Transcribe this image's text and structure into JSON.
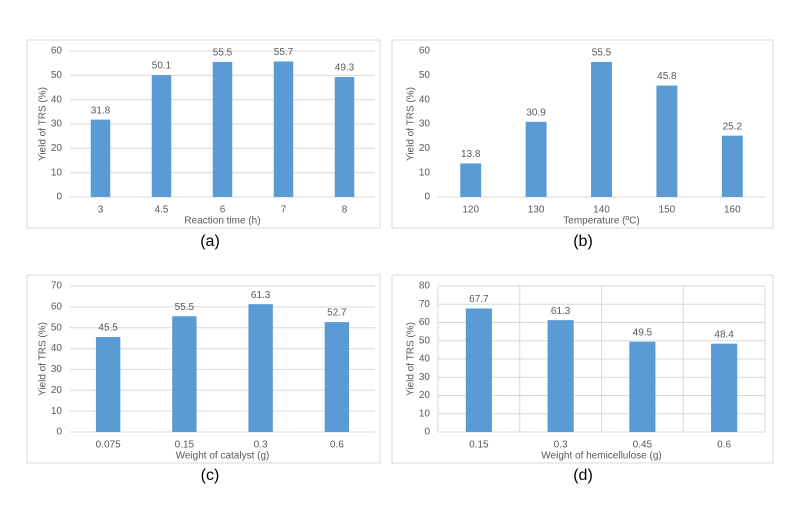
{
  "chart_data": [
    {
      "type": "bar",
      "caption": "(a)",
      "xlabel": "Reaction time (h)",
      "ylabel": "Yield of TRS (%)",
      "categories": [
        "3",
        "4.5",
        "6",
        "7",
        "8"
      ],
      "values": [
        31.8,
        50.1,
        55.5,
        55.7,
        49.3
      ],
      "color": "#5b9bd5",
      "ylim": [
        0,
        60
      ],
      "yticks": [
        0,
        10,
        20,
        30,
        40,
        50,
        60
      ],
      "grid": true,
      "vgrid": false
    },
    {
      "type": "bar",
      "caption": "(b)",
      "xlabel": "Temperature (ºC)",
      "ylabel": "Yield of TRS (%)",
      "categories": [
        "120",
        "130",
        "140",
        "150",
        "160"
      ],
      "values": [
        13.8,
        30.9,
        55.5,
        45.8,
        25.2
      ],
      "color": "#5b9bd5",
      "ylim": [
        0,
        60
      ],
      "yticks": [
        0,
        10,
        20,
        30,
        40,
        50,
        60
      ],
      "grid": false,
      "vgrid": false
    },
    {
      "type": "bar",
      "caption": "(c)",
      "xlabel": "Weight of catalyst (g)",
      "ylabel": "Yield of TRS (%)",
      "categories": [
        "0.075",
        "0.15",
        "0.3",
        "0.6"
      ],
      "values": [
        45.5,
        55.5,
        61.3,
        52.7
      ],
      "color": "#5b9bd5",
      "ylim": [
        0,
        70
      ],
      "yticks": [
        0,
        10,
        20,
        30,
        40,
        50,
        60,
        70
      ],
      "grid": true,
      "vgrid": false
    },
    {
      "type": "bar",
      "caption": "(d)",
      "xlabel": "Weight of hemicellulose (g)",
      "ylabel": "Yield of TRS (%)",
      "categories": [
        "0.15",
        "0.3",
        "0.45",
        "0.6"
      ],
      "values": [
        67.7,
        61.3,
        49.5,
        48.4
      ],
      "color": "#5b9bd5",
      "ylim": [
        0,
        80
      ],
      "yticks": [
        0,
        10,
        20,
        30,
        40,
        50,
        60,
        70,
        80
      ],
      "grid": true,
      "vgrid": true
    }
  ]
}
